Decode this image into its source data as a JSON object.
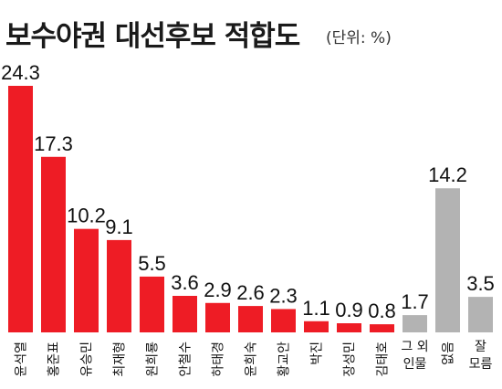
{
  "title": "보수야권 대선후보 적합도",
  "unit_label": "(단위: %)",
  "chart_data": {
    "type": "bar",
    "title": "보수야권 대선후보 적합도",
    "unit": "(단위: %)",
    "categories": [
      "윤석열",
      "홍준표",
      "유승민",
      "최재형",
      "원희룡",
      "안철수",
      "하태경",
      "윤희숙",
      "황교안",
      "박진",
      "장성민",
      "김태호",
      "그 외 인물",
      "없음",
      "잘 모름"
    ],
    "values": [
      24.3,
      17.3,
      10.2,
      9.1,
      5.5,
      3.6,
      2.9,
      2.6,
      2.3,
      1.1,
      0.9,
      0.8,
      1.7,
      14.2,
      3.5
    ],
    "value_labels": [
      "24.3",
      "17.3",
      "10.2",
      "9.1",
      "5.5",
      "3.6",
      "2.9",
      "2.6",
      "2.3",
      "1.1",
      "0.9",
      "0.8",
      "1.7",
      "14.2",
      "3.5"
    ],
    "category_label_lines": [
      [
        "윤석열"
      ],
      [
        "홍준표"
      ],
      [
        "유승민"
      ],
      [
        "최재형"
      ],
      [
        "원희룡"
      ],
      [
        "안철수"
      ],
      [
        "하태경"
      ],
      [
        "윤희숙"
      ],
      [
        "황교안"
      ],
      [
        "박진"
      ],
      [
        "장성민"
      ],
      [
        "김태호"
      ],
      [
        "그 외",
        "인물"
      ],
      [
        "없음"
      ],
      [
        "잘",
        "모름"
      ]
    ],
    "bar_colors": [
      "#ee1c25",
      "#ee1c25",
      "#ee1c25",
      "#ee1c25",
      "#ee1c25",
      "#ee1c25",
      "#ee1c25",
      "#ee1c25",
      "#ee1c25",
      "#ee1c25",
      "#ee1c25",
      "#ee1c25",
      "#b3b3b3",
      "#b3b3b3",
      "#b3b3b3"
    ],
    "ylim": [
      0,
      24.3
    ],
    "grid": false,
    "legend": "none"
  }
}
